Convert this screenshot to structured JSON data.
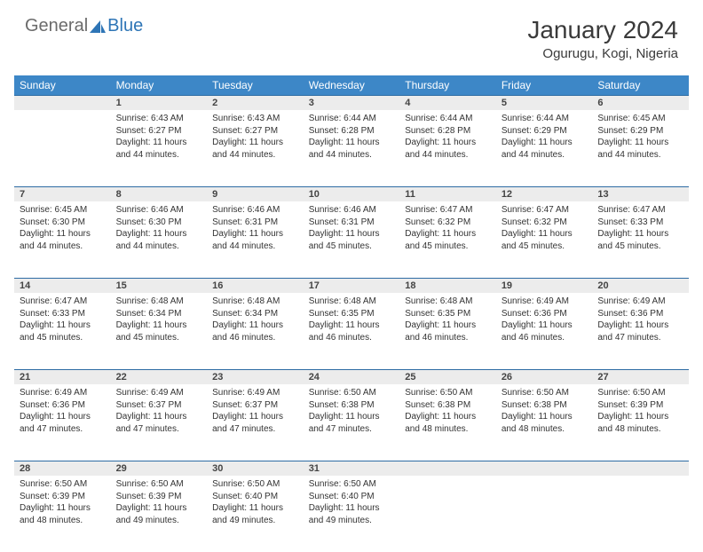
{
  "logo": {
    "text1": "General",
    "text2": "Blue"
  },
  "title": "January 2024",
  "location": "Ogurugu, Kogi, Nigeria",
  "weekday_headers": [
    "Sunday",
    "Monday",
    "Tuesday",
    "Wednesday",
    "Thursday",
    "Friday",
    "Saturday"
  ],
  "colors": {
    "header_bg": "#3d87c7",
    "header_text": "#ffffff",
    "daynum_bg": "#ececec",
    "daynum_border": "#2e6ca4",
    "logo_gray": "#6b6b6b",
    "logo_blue": "#2e75b6"
  },
  "weeks": [
    [
      null,
      {
        "n": "1",
        "sr": "Sunrise: 6:43 AM",
        "ss": "Sunset: 6:27 PM",
        "d1": "Daylight: 11 hours",
        "d2": "and 44 minutes."
      },
      {
        "n": "2",
        "sr": "Sunrise: 6:43 AM",
        "ss": "Sunset: 6:27 PM",
        "d1": "Daylight: 11 hours",
        "d2": "and 44 minutes."
      },
      {
        "n": "3",
        "sr": "Sunrise: 6:44 AM",
        "ss": "Sunset: 6:28 PM",
        "d1": "Daylight: 11 hours",
        "d2": "and 44 minutes."
      },
      {
        "n": "4",
        "sr": "Sunrise: 6:44 AM",
        "ss": "Sunset: 6:28 PM",
        "d1": "Daylight: 11 hours",
        "d2": "and 44 minutes."
      },
      {
        "n": "5",
        "sr": "Sunrise: 6:44 AM",
        "ss": "Sunset: 6:29 PM",
        "d1": "Daylight: 11 hours",
        "d2": "and 44 minutes."
      },
      {
        "n": "6",
        "sr": "Sunrise: 6:45 AM",
        "ss": "Sunset: 6:29 PM",
        "d1": "Daylight: 11 hours",
        "d2": "and 44 minutes."
      }
    ],
    [
      {
        "n": "7",
        "sr": "Sunrise: 6:45 AM",
        "ss": "Sunset: 6:30 PM",
        "d1": "Daylight: 11 hours",
        "d2": "and 44 minutes."
      },
      {
        "n": "8",
        "sr": "Sunrise: 6:46 AM",
        "ss": "Sunset: 6:30 PM",
        "d1": "Daylight: 11 hours",
        "d2": "and 44 minutes."
      },
      {
        "n": "9",
        "sr": "Sunrise: 6:46 AM",
        "ss": "Sunset: 6:31 PM",
        "d1": "Daylight: 11 hours",
        "d2": "and 44 minutes."
      },
      {
        "n": "10",
        "sr": "Sunrise: 6:46 AM",
        "ss": "Sunset: 6:31 PM",
        "d1": "Daylight: 11 hours",
        "d2": "and 45 minutes."
      },
      {
        "n": "11",
        "sr": "Sunrise: 6:47 AM",
        "ss": "Sunset: 6:32 PM",
        "d1": "Daylight: 11 hours",
        "d2": "and 45 minutes."
      },
      {
        "n": "12",
        "sr": "Sunrise: 6:47 AM",
        "ss": "Sunset: 6:32 PM",
        "d1": "Daylight: 11 hours",
        "d2": "and 45 minutes."
      },
      {
        "n": "13",
        "sr": "Sunrise: 6:47 AM",
        "ss": "Sunset: 6:33 PM",
        "d1": "Daylight: 11 hours",
        "d2": "and 45 minutes."
      }
    ],
    [
      {
        "n": "14",
        "sr": "Sunrise: 6:47 AM",
        "ss": "Sunset: 6:33 PM",
        "d1": "Daylight: 11 hours",
        "d2": "and 45 minutes."
      },
      {
        "n": "15",
        "sr": "Sunrise: 6:48 AM",
        "ss": "Sunset: 6:34 PM",
        "d1": "Daylight: 11 hours",
        "d2": "and 45 minutes."
      },
      {
        "n": "16",
        "sr": "Sunrise: 6:48 AM",
        "ss": "Sunset: 6:34 PM",
        "d1": "Daylight: 11 hours",
        "d2": "and 46 minutes."
      },
      {
        "n": "17",
        "sr": "Sunrise: 6:48 AM",
        "ss": "Sunset: 6:35 PM",
        "d1": "Daylight: 11 hours",
        "d2": "and 46 minutes."
      },
      {
        "n": "18",
        "sr": "Sunrise: 6:48 AM",
        "ss": "Sunset: 6:35 PM",
        "d1": "Daylight: 11 hours",
        "d2": "and 46 minutes."
      },
      {
        "n": "19",
        "sr": "Sunrise: 6:49 AM",
        "ss": "Sunset: 6:36 PM",
        "d1": "Daylight: 11 hours",
        "d2": "and 46 minutes."
      },
      {
        "n": "20",
        "sr": "Sunrise: 6:49 AM",
        "ss": "Sunset: 6:36 PM",
        "d1": "Daylight: 11 hours",
        "d2": "and 47 minutes."
      }
    ],
    [
      {
        "n": "21",
        "sr": "Sunrise: 6:49 AM",
        "ss": "Sunset: 6:36 PM",
        "d1": "Daylight: 11 hours",
        "d2": "and 47 minutes."
      },
      {
        "n": "22",
        "sr": "Sunrise: 6:49 AM",
        "ss": "Sunset: 6:37 PM",
        "d1": "Daylight: 11 hours",
        "d2": "and 47 minutes."
      },
      {
        "n": "23",
        "sr": "Sunrise: 6:49 AM",
        "ss": "Sunset: 6:37 PM",
        "d1": "Daylight: 11 hours",
        "d2": "and 47 minutes."
      },
      {
        "n": "24",
        "sr": "Sunrise: 6:50 AM",
        "ss": "Sunset: 6:38 PM",
        "d1": "Daylight: 11 hours",
        "d2": "and 47 minutes."
      },
      {
        "n": "25",
        "sr": "Sunrise: 6:50 AM",
        "ss": "Sunset: 6:38 PM",
        "d1": "Daylight: 11 hours",
        "d2": "and 48 minutes."
      },
      {
        "n": "26",
        "sr": "Sunrise: 6:50 AM",
        "ss": "Sunset: 6:38 PM",
        "d1": "Daylight: 11 hours",
        "d2": "and 48 minutes."
      },
      {
        "n": "27",
        "sr": "Sunrise: 6:50 AM",
        "ss": "Sunset: 6:39 PM",
        "d1": "Daylight: 11 hours",
        "d2": "and 48 minutes."
      }
    ],
    [
      {
        "n": "28",
        "sr": "Sunrise: 6:50 AM",
        "ss": "Sunset: 6:39 PM",
        "d1": "Daylight: 11 hours",
        "d2": "and 48 minutes."
      },
      {
        "n": "29",
        "sr": "Sunrise: 6:50 AM",
        "ss": "Sunset: 6:39 PM",
        "d1": "Daylight: 11 hours",
        "d2": "and 49 minutes."
      },
      {
        "n": "30",
        "sr": "Sunrise: 6:50 AM",
        "ss": "Sunset: 6:40 PM",
        "d1": "Daylight: 11 hours",
        "d2": "and 49 minutes."
      },
      {
        "n": "31",
        "sr": "Sunrise: 6:50 AM",
        "ss": "Sunset: 6:40 PM",
        "d1": "Daylight: 11 hours",
        "d2": "and 49 minutes."
      },
      null,
      null,
      null
    ]
  ]
}
